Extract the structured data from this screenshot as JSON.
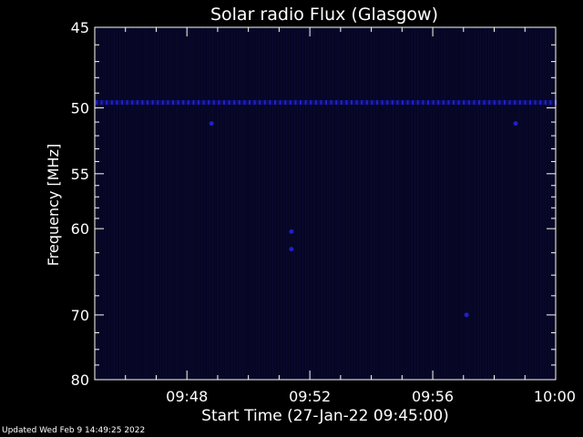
{
  "chart_data": {
    "type": "heatmap",
    "title": "Solar radio Flux (Glasgow)",
    "xlabel": "Start Time (27-Jan-22 09:45:00)",
    "ylabel": "Frequency [MHz]",
    "x_ticks": [
      "09:48",
      "09:52",
      "09:56",
      "10:00"
    ],
    "x_tick_minutes": [
      3,
      7,
      11,
      15
    ],
    "xlim_minutes_after_start": [
      0,
      15
    ],
    "y_ticks": [
      45,
      50,
      55,
      60,
      70,
      80
    ],
    "ylim": [
      45,
      80
    ],
    "y_scale": "reciprocal",
    "background_color": "#000000",
    "plot_color": "#060624",
    "signal_color": "#2020c8",
    "features": {
      "band_frequency_mhz": 49.6,
      "spots": [
        {
          "minute": 3.8,
          "mhz": 51.1
        },
        {
          "minute": 13.7,
          "mhz": 51.1
        },
        {
          "minute": 6.4,
          "mhz": 60.3
        },
        {
          "minute": 6.4,
          "mhz": 62.1
        },
        {
          "minute": 12.1,
          "mhz": 70.0
        }
      ]
    }
  },
  "footer": "Updated Wed Feb  9 14:49:25 2022"
}
